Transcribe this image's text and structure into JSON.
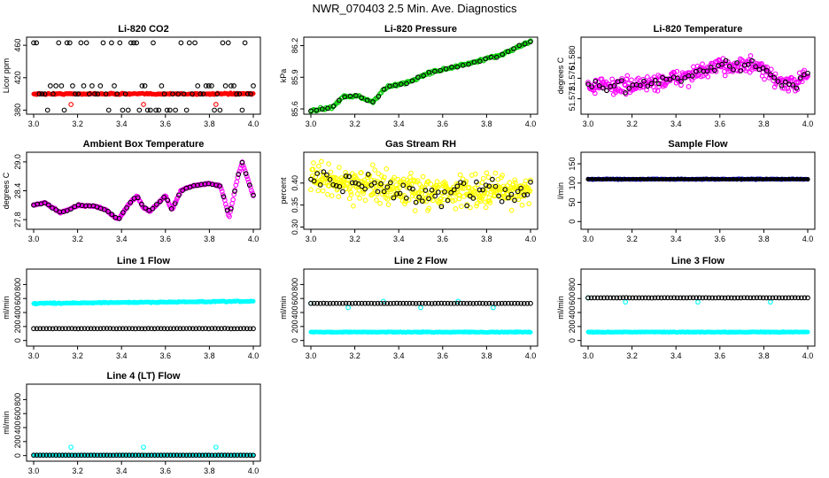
{
  "page": {
    "title": "NWR_070403  2.5 Min. Ave. Diagnostics"
  },
  "colors": {
    "black": "#000000",
    "red": "#ff0000",
    "green": "#00cc00",
    "magenta": "#ff00ff",
    "yellow": "#ffff00",
    "blue": "#0000cc",
    "cyan": "#00ffff"
  },
  "chart_data": [
    {
      "id": "co2",
      "type": "scatter",
      "title": "Li-820 CO2",
      "ylabel": "Licor ppm",
      "xlim": [
        3.0,
        4.0
      ],
      "ylim": [
        375,
        470
      ],
      "xticks": [
        "3.0",
        "3.2",
        "3.4",
        "3.6",
        "3.8",
        "4.0"
      ],
      "yticks": [
        {
          "v": 380,
          "l": "380"
        },
        {
          "v": 420,
          "l": "420"
        },
        {
          "v": 460,
          "l": "460"
        }
      ],
      "series": [
        {
          "name": "CO2 (red)",
          "color": "red",
          "marker": "dot",
          "gen": "flat",
          "n": 300,
          "y0": 400,
          "y1": 400,
          "noise": 1
        },
        {
          "name": "CO2 red outliers",
          "color": "red",
          "marker": "circle",
          "x": [
            3.17,
            3.5,
            3.83
          ],
          "y": [
            387,
            387,
            387
          ]
        },
        {
          "name": "CO2 ref (black)",
          "color": "black",
          "marker": "circle",
          "gen": "levels",
          "n": 80,
          "levels": [
            380,
            400,
            410,
            463
          ]
        }
      ]
    },
    {
      "id": "pressure",
      "type": "scatter",
      "title": "Li-820 Pressure",
      "ylabel": "kPa",
      "xlim": [
        3.0,
        4.0
      ],
      "ylim": [
        85.55,
        86.28
      ],
      "xticks": [
        "3.0",
        "3.2",
        "3.4",
        "3.6",
        "3.8",
        "4.0"
      ],
      "yticks": [
        {
          "v": 85.6,
          "l": "85.6"
        },
        {
          "v": 85.9,
          "l": "85.9"
        },
        {
          "v": 86.2,
          "l": "86.2"
        }
      ],
      "series": [
        {
          "name": "pressure (green)",
          "color": "green",
          "marker": "circle",
          "gen": "trend",
          "n": 160,
          "anchors": [
            [
              3.0,
              85.58
            ],
            [
              3.1,
              85.62
            ],
            [
              3.15,
              85.72
            ],
            [
              3.22,
              85.72
            ],
            [
              3.28,
              85.66
            ],
            [
              3.34,
              85.8
            ],
            [
              3.45,
              85.86
            ],
            [
              3.55,
              85.95
            ],
            [
              3.7,
              86.02
            ],
            [
              3.85,
              86.1
            ],
            [
              4.0,
              86.24
            ]
          ],
          "noise": 0.012
        },
        {
          "name": "pressure (black)",
          "color": "black",
          "marker": "circle",
          "gen": "trend",
          "n": 40,
          "anchors": [
            [
              3.0,
              85.58
            ],
            [
              3.1,
              85.62
            ],
            [
              3.15,
              85.72
            ],
            [
              3.22,
              85.72
            ],
            [
              3.28,
              85.66
            ],
            [
              3.34,
              85.8
            ],
            [
              3.45,
              85.86
            ],
            [
              3.55,
              85.95
            ],
            [
              3.7,
              86.02
            ],
            [
              3.85,
              86.1
            ],
            [
              4.0,
              86.24
            ]
          ],
          "noise": 0.01
        }
      ]
    },
    {
      "id": "licor-temp",
      "type": "scatter",
      "title": "Li-820 Temperature",
      "ylabel": "degrees C",
      "xlim": [
        3.0,
        4.0
      ],
      "ylim": [
        51.569,
        51.584
      ],
      "xticks": [
        "3.0",
        "3.2",
        "3.4",
        "3.6",
        "3.8",
        "4.0"
      ],
      "yticks": [
        {
          "v": 51.572,
          "l": "51.572"
        },
        {
          "v": 51.576,
          "l": "51.576"
        },
        {
          "v": 51.58,
          "l": "51.580"
        }
      ],
      "series": [
        {
          "name": "temp (magenta)",
          "color": "magenta",
          "marker": "circle",
          "gen": "trend",
          "n": 320,
          "anchors": [
            [
              3.0,
              51.5745
            ],
            [
              3.2,
              51.5745
            ],
            [
              3.35,
              51.5755
            ],
            [
              3.5,
              51.577
            ],
            [
              3.62,
              51.5785
            ],
            [
              3.75,
              51.5785
            ],
            [
              3.85,
              51.576
            ],
            [
              3.92,
              51.5745
            ],
            [
              4.0,
              51.5765
            ]
          ],
          "noise": 0.0016
        },
        {
          "name": "temp (black)",
          "color": "black",
          "marker": "circle",
          "gen": "trend",
          "n": 60,
          "anchors": [
            [
              3.0,
              51.5745
            ],
            [
              3.2,
              51.5745
            ],
            [
              3.35,
              51.5755
            ],
            [
              3.5,
              51.577
            ],
            [
              3.62,
              51.5785
            ],
            [
              3.75,
              51.5785
            ],
            [
              3.85,
              51.576
            ],
            [
              3.92,
              51.5745
            ],
            [
              4.0,
              51.5765
            ]
          ],
          "noise": 0.0012
        }
      ]
    },
    {
      "id": "box-temp",
      "type": "scatter",
      "title": "Ambient Box Temperature",
      "ylabel": "degrees C",
      "xlim": [
        3.0,
        4.0
      ],
      "ylim": [
        27.6,
        29.2
      ],
      "xticks": [
        "3.0",
        "3.2",
        "3.4",
        "3.6",
        "3.8",
        "4.0"
      ],
      "yticks": [
        {
          "v": 27.8,
          "l": "27.8"
        },
        {
          "v": 28.4,
          "l": "28.4"
        },
        {
          "v": 29.0,
          "l": "29.0"
        }
      ],
      "series": [
        {
          "name": "box temp (magenta)",
          "color": "magenta",
          "marker": "circle",
          "gen": "trend",
          "n": 240,
          "anchors": [
            [
              3.0,
              28.1
            ],
            [
              3.05,
              28.15
            ],
            [
              3.12,
              27.95
            ],
            [
              3.16,
              28.0
            ],
            [
              3.2,
              28.1
            ],
            [
              3.28,
              28.08
            ],
            [
              3.33,
              28.0
            ],
            [
              3.37,
              27.85
            ],
            [
              3.39,
              27.82
            ],
            [
              3.43,
              28.1
            ],
            [
              3.47,
              28.3
            ],
            [
              3.5,
              28.05
            ],
            [
              3.53,
              27.98
            ],
            [
              3.57,
              28.15
            ],
            [
              3.6,
              28.3
            ],
            [
              3.63,
              28.0
            ],
            [
              3.67,
              28.4
            ],
            [
              3.72,
              28.5
            ],
            [
              3.8,
              28.55
            ],
            [
              3.85,
              28.5
            ],
            [
              3.87,
              28.2
            ],
            [
              3.89,
              27.85
            ],
            [
              3.93,
              28.7
            ],
            [
              3.95,
              29.0
            ],
            [
              3.97,
              28.7
            ],
            [
              4.0,
              28.3
            ]
          ],
          "noise": 0.015
        },
        {
          "name": "box temp (black)",
          "color": "black",
          "marker": "circle",
          "gen": "trend",
          "n": 60,
          "anchors": [
            [
              3.0,
              28.1
            ],
            [
              3.05,
              28.15
            ],
            [
              3.12,
              27.95
            ],
            [
              3.16,
              28.0
            ],
            [
              3.2,
              28.1
            ],
            [
              3.28,
              28.08
            ],
            [
              3.33,
              28.0
            ],
            [
              3.37,
              27.85
            ],
            [
              3.39,
              27.82
            ],
            [
              3.43,
              28.1
            ],
            [
              3.47,
              28.3
            ],
            [
              3.5,
              28.05
            ],
            [
              3.53,
              27.98
            ],
            [
              3.57,
              28.15
            ],
            [
              3.6,
              28.3
            ],
            [
              3.63,
              28.0
            ],
            [
              3.67,
              28.4
            ],
            [
              3.72,
              28.5
            ],
            [
              3.8,
              28.55
            ],
            [
              3.85,
              28.5
            ],
            [
              3.87,
              28.2
            ],
            [
              3.89,
              27.85
            ],
            [
              3.93,
              28.7
            ],
            [
              3.95,
              29.0
            ],
            [
              3.97,
              28.7
            ],
            [
              4.0,
              28.3
            ]
          ],
          "noise": 0.01
        }
      ]
    },
    {
      "id": "rh",
      "type": "scatter",
      "title": "Gas Stream RH",
      "ylabel": "percent",
      "xlim": [
        3.0,
        4.0
      ],
      "ylim": [
        0.295,
        0.47
      ],
      "xticks": [
        "3.0",
        "3.2",
        "3.4",
        "3.6",
        "3.8",
        "4.0"
      ],
      "yticks": [
        {
          "v": 0.3,
          "l": "0.30"
        },
        {
          "v": 0.35,
          "l": "0.35"
        },
        {
          "v": 0.4,
          "l": "0.40"
        }
      ],
      "series": [
        {
          "name": "RH (yellow)",
          "color": "yellow",
          "marker": "circle",
          "gen": "trend",
          "n": 420,
          "anchors": [
            [
              3.0,
              0.41
            ],
            [
              3.5,
              0.38
            ],
            [
              4.0,
              0.385
            ]
          ],
          "noise": 0.035
        },
        {
          "name": "RH (black)",
          "color": "black",
          "marker": "circle",
          "gen": "trend",
          "n": 70,
          "anchors": [
            [
              3.0,
              0.41
            ],
            [
              3.5,
              0.375
            ],
            [
              4.0,
              0.38
            ]
          ],
          "noise": 0.03
        }
      ]
    },
    {
      "id": "sample-flow",
      "type": "scatter",
      "title": "Sample Flow",
      "ylabel": "l/min",
      "xlim": [
        3.0,
        4.0
      ],
      "ylim": [
        -20,
        180
      ],
      "xticks": [
        "3.0",
        "3.2",
        "3.4",
        "3.6",
        "3.8",
        "4.0"
      ],
      "yticks": [
        {
          "v": 0,
          "l": "0"
        },
        {
          "v": 50,
          "l": "50"
        },
        {
          "v": 100,
          "l": "100"
        },
        {
          "v": 150,
          "l": "150"
        }
      ],
      "series": [
        {
          "name": "sample flow (blue)",
          "color": "blue",
          "marker": "dot",
          "gen": "flat",
          "n": 300,
          "y0": 110,
          "y1": 110,
          "noise": 1
        },
        {
          "name": "sample flow (black)",
          "color": "black",
          "marker": "dot",
          "gen": "flat",
          "n": 60,
          "y0": 110,
          "y1": 110,
          "noise": 0.5
        }
      ]
    },
    {
      "id": "line1",
      "type": "scatter",
      "title": "Line 1 Flow",
      "ylabel": "ml/min",
      "xlim": [
        3.0,
        4.0
      ],
      "ylim": [
        -80,
        1020
      ],
      "xticks": [
        "3.0",
        "3.2",
        "3.4",
        "3.6",
        "3.8",
        "4.0"
      ],
      "yticks": [
        {
          "v": 0,
          "l": "0"
        },
        {
          "v": 200,
          "l": "200"
        },
        {
          "v": 400,
          "l": "400"
        },
        {
          "v": 600,
          "l": "600"
        },
        {
          "v": 800,
          "l": "800"
        }
      ],
      "series": [
        {
          "name": "line1 (cyan)",
          "color": "cyan",
          "marker": "dot",
          "gen": "flat",
          "n": 300,
          "y0": 530,
          "y1": 560,
          "noise": 8
        },
        {
          "name": "line1 (black)",
          "color": "black",
          "marker": "circle",
          "gen": "flat",
          "n": 70,
          "y0": 170,
          "y1": 170,
          "noise": 2
        }
      ]
    },
    {
      "id": "line2",
      "type": "scatter",
      "title": "Line 2 Flow",
      "ylabel": "ml/min",
      "xlim": [
        3.0,
        4.0
      ],
      "ylim": [
        -80,
        1020
      ],
      "xticks": [
        "3.0",
        "3.2",
        "3.4",
        "3.6",
        "3.8",
        "4.0"
      ],
      "yticks": [
        {
          "v": 0,
          "l": "0"
        },
        {
          "v": 200,
          "l": "200"
        },
        {
          "v": 400,
          "l": "400"
        },
        {
          "v": 600,
          "l": "600"
        },
        {
          "v": 800,
          "l": "800"
        }
      ],
      "series": [
        {
          "name": "line2 (cyan)",
          "color": "cyan",
          "marker": "dot",
          "gen": "flat",
          "n": 300,
          "y0": 120,
          "y1": 120,
          "noise": 5
        },
        {
          "name": "line2 cyan points",
          "color": "cyan",
          "marker": "circle",
          "x": [
            3.0,
            3.17,
            3.33,
            3.5,
            3.67,
            3.83
          ],
          "y": [
            530,
            470,
            560,
            470,
            560,
            470
          ]
        },
        {
          "name": "line2 (black)",
          "color": "black",
          "marker": "circle",
          "gen": "flat",
          "n": 70,
          "y0": 530,
          "y1": 530,
          "noise": 2
        }
      ]
    },
    {
      "id": "line3",
      "type": "scatter",
      "title": "Line 3 Flow",
      "ylabel": "ml/min",
      "xlim": [
        3.0,
        4.0
      ],
      "ylim": [
        -80,
        1020
      ],
      "xticks": [
        "3.0",
        "3.2",
        "3.4",
        "3.6",
        "3.8",
        "4.0"
      ],
      "yticks": [
        {
          "v": 0,
          "l": "0"
        },
        {
          "v": 200,
          "l": "200"
        },
        {
          "v": 400,
          "l": "400"
        },
        {
          "v": 600,
          "l": "600"
        },
        {
          "v": 800,
          "l": "800"
        }
      ],
      "series": [
        {
          "name": "line3 (cyan)",
          "color": "cyan",
          "marker": "dot",
          "gen": "flat",
          "n": 300,
          "y0": 120,
          "y1": 120,
          "noise": 5
        },
        {
          "name": "line3 cyan points",
          "color": "cyan",
          "marker": "circle",
          "x": [
            3.0,
            3.17,
            3.5,
            3.83
          ],
          "y": [
            610,
            550,
            550,
            550
          ]
        },
        {
          "name": "line3 (black)",
          "color": "black",
          "marker": "circle",
          "gen": "flat",
          "n": 70,
          "y0": 610,
          "y1": 610,
          "noise": 2
        }
      ]
    },
    {
      "id": "line4",
      "type": "scatter",
      "title": "Line 4 (LT) Flow",
      "ylabel": "ml/min",
      "xlim": [
        3.0,
        4.0
      ],
      "ylim": [
        -80,
        1020
      ],
      "xticks": [
        "3.0",
        "3.2",
        "3.4",
        "3.6",
        "3.8",
        "4.0"
      ],
      "yticks": [
        {
          "v": 0,
          "l": "0"
        },
        {
          "v": 200,
          "l": "200"
        },
        {
          "v": 400,
          "l": "400"
        },
        {
          "v": 600,
          "l": "600"
        },
        {
          "v": 800,
          "l": "800"
        }
      ],
      "series": [
        {
          "name": "line4 (cyan)",
          "color": "cyan",
          "marker": "dot",
          "gen": "flat",
          "n": 300,
          "y0": 5,
          "y1": 5,
          "noise": 2
        },
        {
          "name": "line4 cyan points",
          "color": "cyan",
          "marker": "circle",
          "x": [
            3.17,
            3.5,
            3.83
          ],
          "y": [
            120,
            120,
            120
          ]
        },
        {
          "name": "line4 (black)",
          "color": "black",
          "marker": "circle",
          "gen": "flat",
          "n": 70,
          "y0": 5,
          "y1": 5,
          "noise": 1
        }
      ]
    }
  ]
}
